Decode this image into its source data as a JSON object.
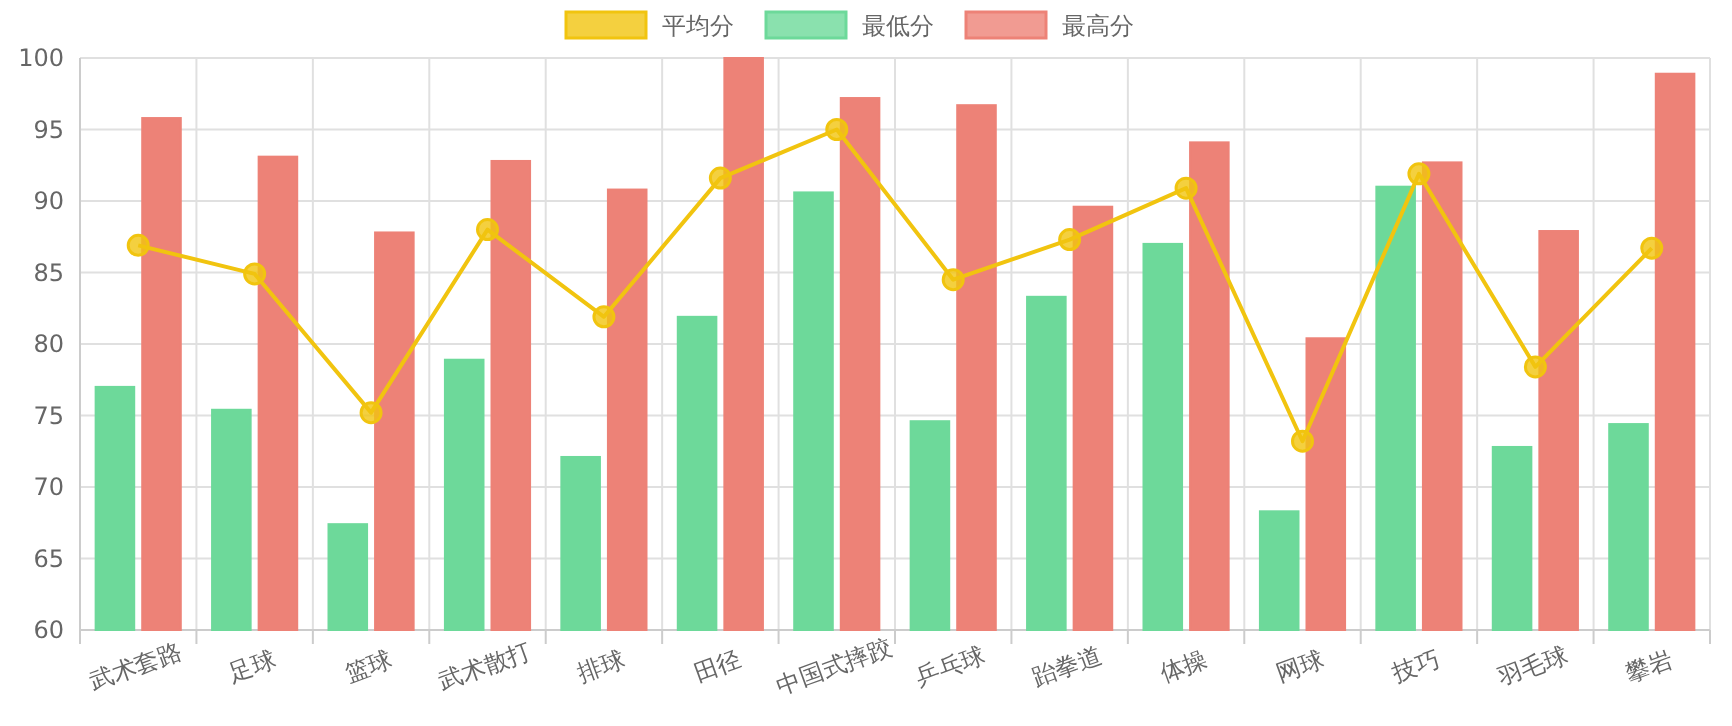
{
  "chart_data": {
    "type": "bar",
    "categories": [
      "武术套路",
      "足球",
      "篮球",
      "武术散打",
      "排球",
      "田径",
      "中国式摔跤",
      "乒乓球",
      "跆拳道",
      "体操",
      "网球",
      "技巧",
      "羽毛球",
      "攀岩"
    ],
    "series": [
      {
        "name": "平均分",
        "type": "line",
        "color": "#f1c40f",
        "values": [
          86.9,
          84.9,
          75.2,
          88.0,
          81.9,
          91.6,
          95.0,
          84.5,
          87.3,
          90.9,
          73.2,
          91.9,
          78.4,
          86.7
        ]
      },
      {
        "name": "最低分",
        "color": "#6dd99a",
        "values": [
          77.0,
          75.4,
          67.4,
          78.9,
          72.1,
          81.9,
          90.6,
          74.6,
          83.3,
          87.0,
          68.3,
          91.0,
          72.8,
          74.4
        ]
      },
      {
        "name": "最高分",
        "color": "#ed8277",
        "values": [
          95.8,
          93.1,
          87.8,
          92.8,
          90.8,
          100,
          97.2,
          96.7,
          89.6,
          94.1,
          80.4,
          92.7,
          87.9,
          98.9
        ]
      }
    ],
    "ylim": [
      60,
      100
    ],
    "yticks": [
      60,
      65,
      70,
      75,
      80,
      85,
      90,
      95,
      100
    ],
    "grid": true,
    "legend": "top",
    "marker": "circle",
    "line_style": "solid"
  }
}
